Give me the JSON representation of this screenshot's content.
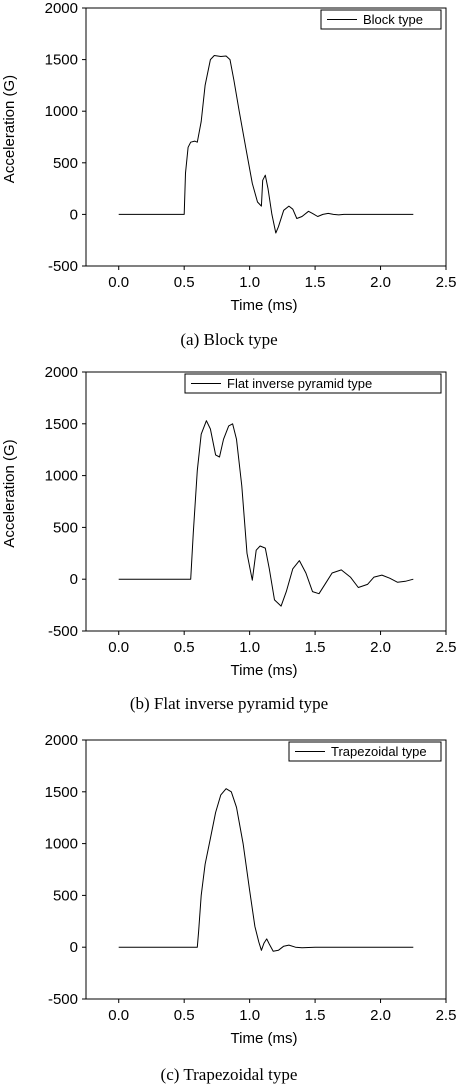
{
  "chart_data": [
    {
      "type": "line",
      "caption": "(a)  Block type",
      "xlabel": "Time (ms)",
      "ylabel": "Acceleration (G)",
      "xlim": [
        -0.25,
        2.5
      ],
      "ylim": [
        -500,
        2000
      ],
      "xticks": [
        "0.0",
        "0.5",
        "1.0",
        "1.5",
        "2.0",
        "2.5"
      ],
      "yticks": [
        "-500",
        "0",
        "500",
        "1000",
        "1500",
        "2000"
      ],
      "legend_position": "top-right",
      "series": [
        {
          "name": "Block type",
          "x": [
            0,
            0.5,
            0.51,
            0.53,
            0.55,
            0.58,
            0.6,
            0.63,
            0.66,
            0.7,
            0.73,
            0.78,
            0.82,
            0.85,
            0.88,
            0.92,
            0.97,
            1.02,
            1.06,
            1.09,
            1.1,
            1.12,
            1.14,
            1.17,
            1.2,
            1.22,
            1.26,
            1.3,
            1.33,
            1.36,
            1.4,
            1.45,
            1.48,
            1.52,
            1.56,
            1.6,
            1.64,
            1.68,
            1.72,
            1.8,
            1.9,
            2.0,
            2.25
          ],
          "y": [
            0,
            0,
            400,
            650,
            700,
            710,
            700,
            900,
            1250,
            1500,
            1540,
            1530,
            1535,
            1500,
            1300,
            1000,
            650,
            300,
            120,
            80,
            330,
            380,
            250,
            0,
            -180,
            -120,
            40,
            80,
            50,
            -40,
            -20,
            30,
            10,
            -20,
            0,
            10,
            0,
            -5,
            0,
            0,
            0,
            0,
            0
          ]
        }
      ]
    },
    {
      "type": "line",
      "caption": "(b) Flat inverse pyramid type",
      "xlabel": "Time (ms)",
      "ylabel": "Acceleration (G)",
      "xlim": [
        -0.25,
        2.5
      ],
      "ylim": [
        -500,
        2000
      ],
      "xticks": [
        "0.0",
        "0.5",
        "1.0",
        "1.5",
        "2.0",
        "2.5"
      ],
      "yticks": [
        "-500",
        "0",
        "500",
        "1000",
        "1500",
        "2000"
      ],
      "legend_position": "top-right",
      "series": [
        {
          "name": "Flat inverse pyramid type",
          "x": [
            0,
            0.55,
            0.57,
            0.6,
            0.63,
            0.67,
            0.7,
            0.74,
            0.77,
            0.8,
            0.84,
            0.87,
            0.9,
            0.94,
            0.98,
            1.02,
            1.05,
            1.08,
            1.12,
            1.15,
            1.19,
            1.24,
            1.28,
            1.33,
            1.38,
            1.43,
            1.48,
            1.53,
            1.58,
            1.63,
            1.7,
            1.77,
            1.83,
            1.9,
            1.95,
            2.01,
            2.07,
            2.13,
            2.19,
            2.25
          ],
          "y": [
            0,
            0,
            450,
            1050,
            1400,
            1530,
            1450,
            1200,
            1180,
            1350,
            1480,
            1500,
            1350,
            900,
            250,
            -10,
            280,
            320,
            300,
            100,
            -200,
            -260,
            -120,
            100,
            180,
            60,
            -120,
            -140,
            -40,
            60,
            90,
            20,
            -80,
            -50,
            20,
            40,
            10,
            -30,
            -20,
            0
          ]
        }
      ]
    },
    {
      "type": "line",
      "caption": "(c) Trapezoidal type",
      "xlabel": "Time (ms)",
      "ylabel": "",
      "xlim": [
        -0.25,
        2.5
      ],
      "ylim": [
        -500,
        2000
      ],
      "xticks": [
        "0.0",
        "0.5",
        "1.0",
        "1.5",
        "2.0",
        "2.5"
      ],
      "yticks": [
        "-500",
        "0",
        "500",
        "1000",
        "1500",
        "2000"
      ],
      "legend_position": "top-right",
      "series": [
        {
          "name": "Trapezoidal type",
          "x": [
            0,
            0.6,
            0.61,
            0.63,
            0.66,
            0.7,
            0.74,
            0.78,
            0.82,
            0.86,
            0.9,
            0.95,
            1.0,
            1.04,
            1.07,
            1.09,
            1.11,
            1.13,
            1.15,
            1.18,
            1.22,
            1.26,
            1.3,
            1.35,
            1.4,
            1.5,
            1.7,
            2.0,
            2.25
          ],
          "y": [
            0,
            0,
            150,
            500,
            800,
            1050,
            1300,
            1470,
            1530,
            1500,
            1350,
            1000,
            550,
            200,
            50,
            -30,
            40,
            80,
            30,
            -40,
            -30,
            10,
            20,
            0,
            -5,
            0,
            0,
            0,
            0
          ]
        }
      ]
    }
  ]
}
